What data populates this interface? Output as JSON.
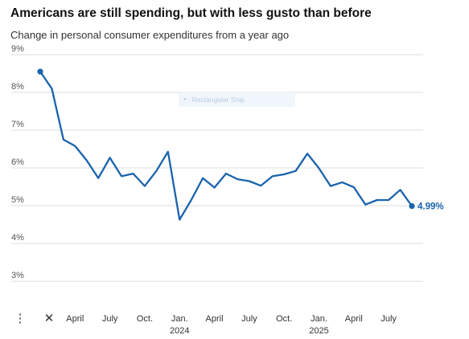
{
  "chart_data": {
    "type": "line",
    "title": "Americans are still spending, but with less gusto than before",
    "subtitle": "Change in personal consumer expenditures from a year ago",
    "ylim": [
      2.5,
      9
    ],
    "y_ticks": [
      {
        "value": 9,
        "label": "9%"
      },
      {
        "value": 8,
        "label": "8%"
      },
      {
        "value": 7,
        "label": "7%"
      },
      {
        "value": 6,
        "label": "6%"
      },
      {
        "value": 5,
        "label": "5%"
      },
      {
        "value": 4,
        "label": "4%"
      },
      {
        "value": 3,
        "label": "3%"
      }
    ],
    "x_ticks": [
      {
        "x": 3,
        "label": "April",
        "year": ""
      },
      {
        "x": 6,
        "label": "July",
        "year": ""
      },
      {
        "x": 9,
        "label": "Oct.",
        "year": ""
      },
      {
        "x": 12,
        "label": "Jan.",
        "year": "2024"
      },
      {
        "x": 15,
        "label": "April",
        "year": ""
      },
      {
        "x": 18,
        "label": "July",
        "year": ""
      },
      {
        "x": 21,
        "label": "Oct.",
        "year": ""
      },
      {
        "x": 24,
        "label": "Jan.",
        "year": "2025"
      },
      {
        "x": 27,
        "label": "April",
        "year": ""
      },
      {
        "x": 30,
        "label": "July",
        "year": ""
      }
    ],
    "x_start": "Jan. 2023",
    "x_range": [
      0,
      32
    ],
    "grid": true,
    "series": [
      {
        "color": "#1a63ad",
        "x": [
          0,
          1,
          2,
          3,
          4,
          5,
          6,
          7,
          8,
          9,
          10,
          11,
          12,
          13,
          14,
          15,
          16,
          17,
          18,
          19,
          20,
          21,
          22,
          23,
          24,
          25,
          26,
          27,
          28,
          29,
          30,
          31,
          32
        ],
        "values": [
          8.55,
          8.1,
          6.75,
          6.58,
          6.2,
          5.73,
          6.27,
          5.78,
          5.85,
          5.52,
          5.92,
          6.43,
          4.63,
          5.15,
          5.73,
          5.48,
          5.85,
          5.7,
          5.65,
          5.53,
          5.78,
          5.83,
          5.92,
          6.38,
          5.99,
          5.52,
          5.62,
          5.49,
          5.03,
          5.15,
          5.15,
          5.42,
          4.99
        ]
      }
    ],
    "end_label": "4.99%"
  },
  "overlay": {
    "snip_label": "Rectangular Snip",
    "snip_icon": "record-dot-icon"
  },
  "toolbar": {
    "more_glyph": "⋮",
    "close_glyph": "✕"
  }
}
